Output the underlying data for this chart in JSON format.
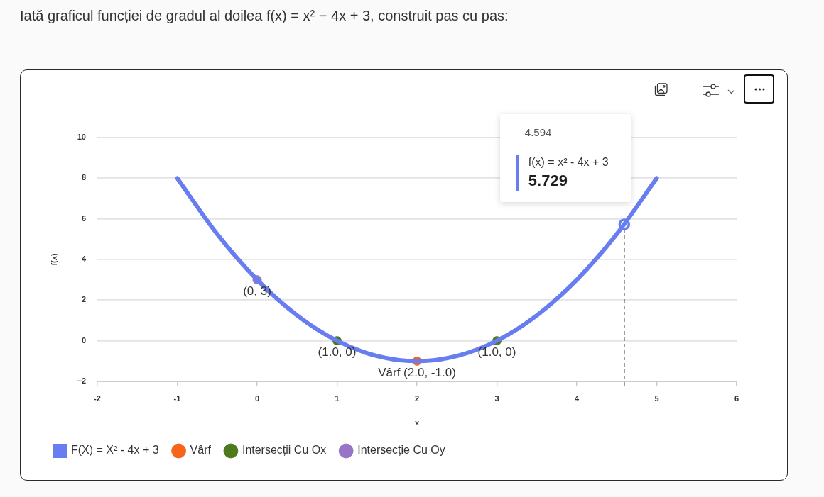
{
  "chart_data": {
    "type": "line",
    "title": "Iată graficul funcției de gradul al doilea f(x) = x² − 4x + 3, construit pas cu pas:",
    "xlabel": "x",
    "ylabel": "f(x)",
    "series": [
      {
        "name": "F(X) = X² - 4x + 3",
        "color": "#687ef0",
        "marker": "none",
        "x": [
          -1,
          -0.5,
          0,
          0.5,
          1,
          1.5,
          2,
          2.5,
          3,
          3.5,
          4,
          4.5,
          5
        ],
        "values": [
          8,
          5.25,
          3,
          1.25,
          0,
          -0.75,
          -1,
          -0.75,
          0,
          1.25,
          3,
          5.25,
          8
        ]
      },
      {
        "name": "Vârf",
        "type": "scatter",
        "color": "#f5651b",
        "marker": "circle",
        "x": [
          2
        ],
        "values": [
          -1
        ],
        "value_labels": [
          "Vârf (2.0, -1.0)"
        ]
      },
      {
        "name": "Intersecții Cu Ox",
        "type": "scatter",
        "color": "#4e7a1e",
        "marker": "circle",
        "x": [
          1,
          3
        ],
        "values": [
          0,
          0
        ],
        "value_labels": [
          "(1.0, 0)",
          "(1.0, 0)"
        ]
      },
      {
        "name": "Intersecție Cu Oy",
        "type": "scatter",
        "color": "#9775c6",
        "marker": "circle",
        "x": [
          0
        ],
        "values": [
          3
        ],
        "value_labels": [
          "(0, 3)"
        ]
      },
      {
        "type": "scatter",
        "color": "#687ef0",
        "marker": "circle",
        "x": [
          4.594
        ],
        "values": [
          5.729
        ]
      }
    ],
    "xlim": [
      -2,
      6
    ],
    "xticks": [
      -2,
      -1,
      0,
      1,
      2,
      3,
      4,
      5,
      6
    ],
    "ylim": [
      -2,
      10
    ],
    "yticks": [
      {
        "value": -2,
        "label": "−2"
      },
      0,
      2,
      4,
      6,
      8,
      10
    ],
    "grid": "y",
    "legend": "bottom left",
    "ref_lines": [
      {
        "axis": "x",
        "value": 4.594,
        "color": "#333333",
        "line_style": "dashed"
      }
    ],
    "annotations": [
      "4.594",
      "f(x) = x² - 4x + 3",
      "5.729"
    ]
  }
}
